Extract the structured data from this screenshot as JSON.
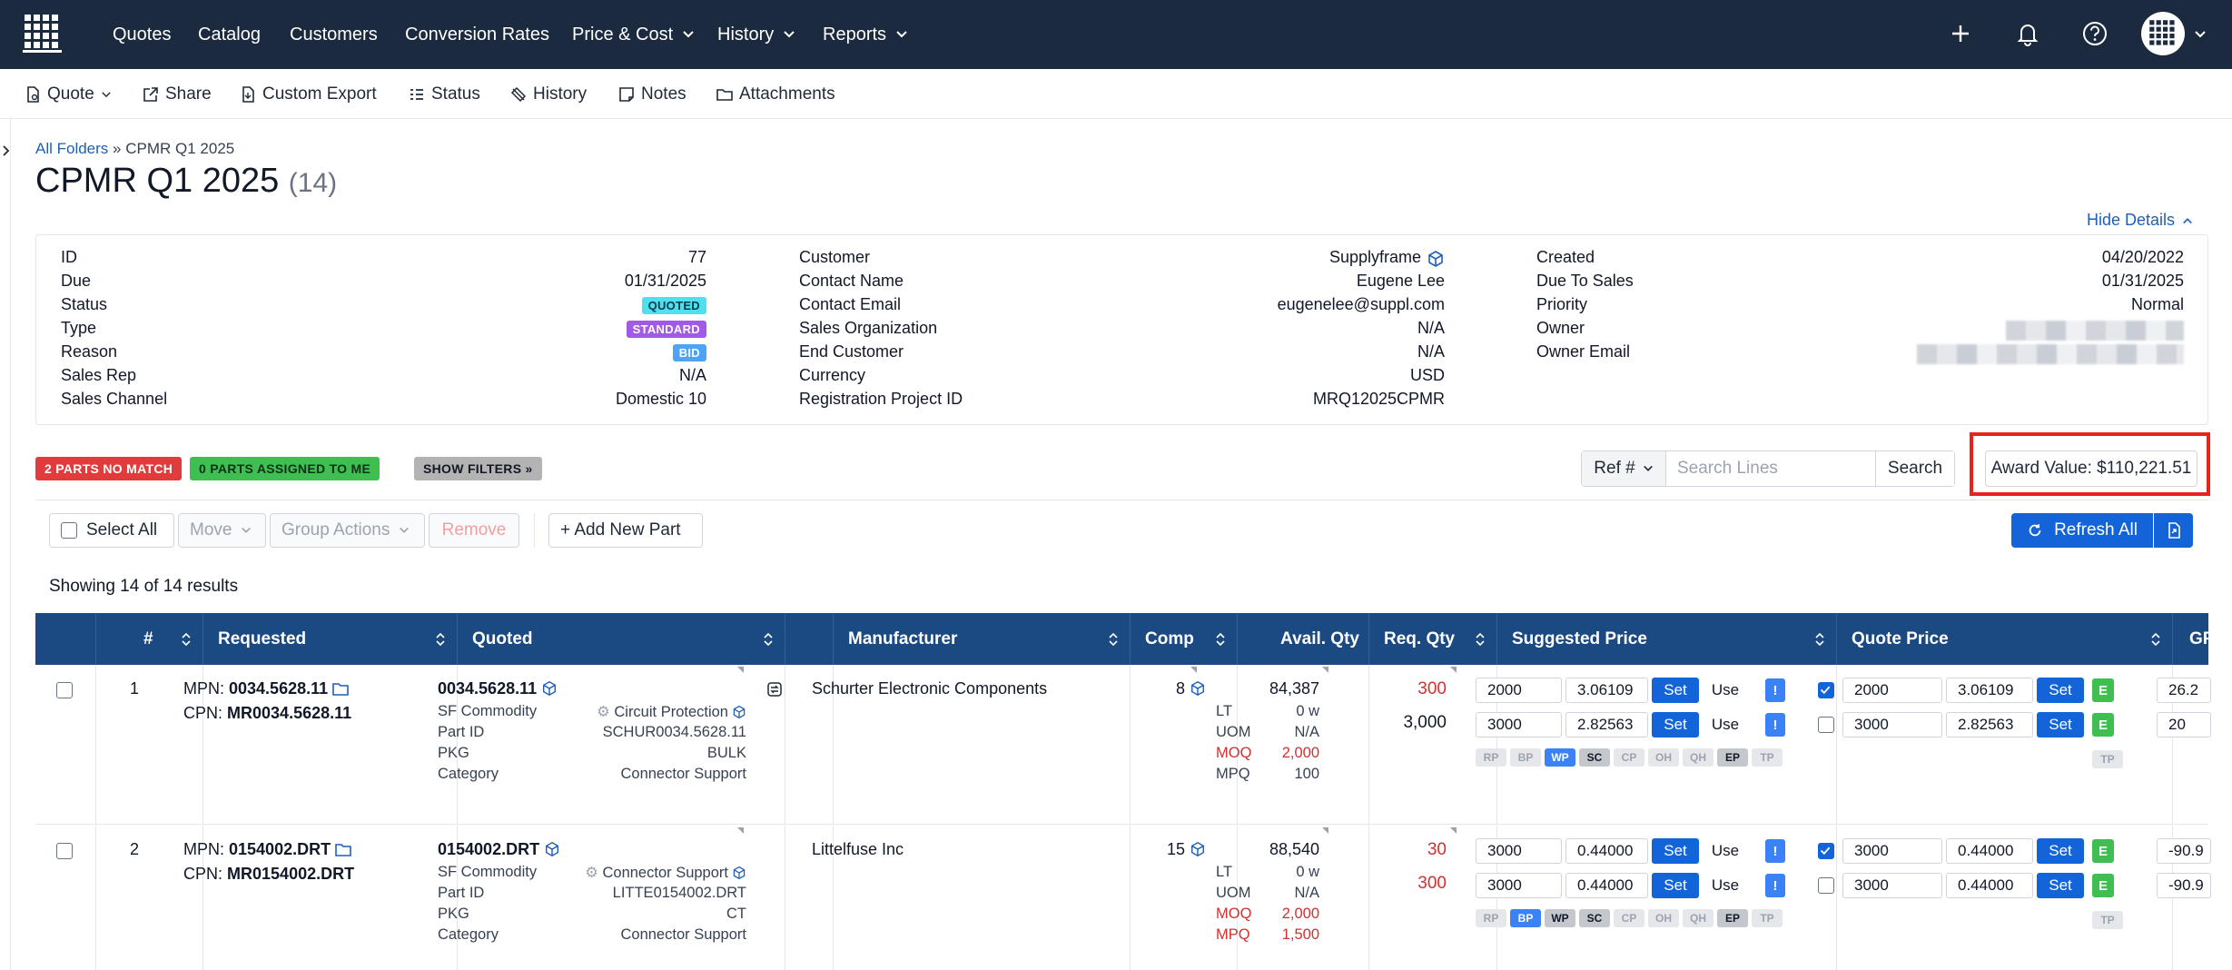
{
  "nav": {
    "items": [
      {
        "label": "Quotes",
        "dropdown": false
      },
      {
        "label": "Catalog",
        "dropdown": false
      },
      {
        "label": "Customers",
        "dropdown": false
      },
      {
        "label": "Conversion Rates",
        "dropdown": false
      },
      {
        "label": "Price & Cost",
        "dropdown": true
      },
      {
        "label": "History",
        "dropdown": true
      },
      {
        "label": "Reports",
        "dropdown": true
      }
    ],
    "icons": [
      "plus-icon",
      "bell-icon",
      "help-icon",
      "avatar"
    ]
  },
  "toolbar": {
    "quote": "Quote",
    "share": "Share",
    "custom_export": "Custom Export",
    "status": "Status",
    "history": "History",
    "notes": "Notes",
    "attachments": "Attachments"
  },
  "breadcrumb": {
    "root": "All Folders",
    "sep": "»",
    "current": "CPMR Q1 2025"
  },
  "page": {
    "title": "CPMR Q1 2025",
    "count": "(14)",
    "hide_details": "Hide Details"
  },
  "details": {
    "col1": [
      {
        "label": "ID",
        "value": "77"
      },
      {
        "label": "Due",
        "value": "01/31/2025"
      },
      {
        "label": "Status",
        "value": "QUOTED",
        "badge": "quoted"
      },
      {
        "label": "Type",
        "value": "STANDARD",
        "badge": "standard"
      },
      {
        "label": "Reason",
        "value": "BID",
        "badge": "bid"
      },
      {
        "label": "Sales Rep",
        "value": "N/A"
      },
      {
        "label": "Sales Channel",
        "value": "Domestic 10"
      }
    ],
    "col2": [
      {
        "label": "Customer",
        "value": "Supplyframe"
      },
      {
        "label": "Contact Name",
        "value": "Eugene Lee"
      },
      {
        "label": "Contact Email",
        "value": "eugenelee@suppl.com"
      },
      {
        "label": "Sales Organization",
        "value": "N/A"
      },
      {
        "label": "End Customer",
        "value": "N/A"
      },
      {
        "label": "Currency",
        "value": "USD"
      },
      {
        "label": "Registration Project ID",
        "value": "MRQ12025CPMR"
      }
    ],
    "col3": [
      {
        "label": "Created",
        "value": "04/20/2022"
      },
      {
        "label": "Due To Sales",
        "value": "01/31/2025"
      },
      {
        "label": "Priority",
        "value": "Normal"
      },
      {
        "label": "Owner",
        "value": ""
      },
      {
        "label": "Owner Email",
        "value": ""
      }
    ]
  },
  "filters": {
    "no_match": "2 PARTS NO MATCH",
    "assigned": "0 PARTS ASSIGNED TO ME",
    "show_filters": "SHOW FILTERS »"
  },
  "search": {
    "ref": "Ref #",
    "placeholder": "Search Lines",
    "button": "Search"
  },
  "award": "Award Value: $110,221.51",
  "actions": {
    "select_all": "Select All",
    "move": "Move",
    "group_actions": "Group Actions",
    "remove": "Remove",
    "add_new_part": "+ Add New Part",
    "refresh_all": "Refresh All"
  },
  "showing": "Showing 14 of 14 results",
  "table": {
    "headers": {
      "num": "#",
      "requested": "Requested",
      "quoted": "Quoted",
      "manufacturer": "Manufacturer",
      "comp": "Comp",
      "avail": "Avail. Qty",
      "req": "Req. Qty",
      "suggested": "Suggested Price",
      "quote_price": "Quote Price",
      "gp": "GP"
    },
    "chips": [
      "RP",
      "BP",
      "WP",
      "SC",
      "CP",
      "OH",
      "QH",
      "EP",
      "TP"
    ],
    "rows": [
      {
        "num": "1",
        "mpn_label": "MPN:",
        "mpn": "0034.5628.11",
        "cpn_label": "CPN:",
        "cpn": "MR0034.5628.11",
        "quoted_part": "0034.5628.11",
        "sf_commodity_label": "SF Commodity",
        "sf_commodity": "Circuit Protection",
        "part_id_label": "Part ID",
        "part_id": "SCHUR0034.5628.11",
        "pkg_label": "PKG",
        "pkg": "BULK",
        "category_label": "Category",
        "category": "Connector Support",
        "manufacturer": "Schurter Electronic Components",
        "comp": "8",
        "avail": "84,387",
        "lt_label": "LT",
        "lt": "0 w",
        "uom_label": "UOM",
        "uom": "N/A",
        "moq_label": "MOQ",
        "moq": "2,000",
        "mpq_label": "MPQ",
        "mpq": "100",
        "req_qty": [
          "300",
          "3,000"
        ],
        "suggested": [
          {
            "qty": "2000",
            "price": "3.06109",
            "set": "Set",
            "use": "Use",
            "alert": "!"
          },
          {
            "qty": "3000",
            "price": "2.82563",
            "set": "Set",
            "use": "Use",
            "alert": "!"
          }
        ],
        "quote": [
          {
            "checked": true,
            "qty": "2000",
            "price": "3.06109",
            "set": "Set",
            "e": "E"
          },
          {
            "checked": false,
            "qty": "3000",
            "price": "2.82563",
            "set": "Set",
            "e": "E"
          }
        ],
        "gp": [
          "26.2",
          "20"
        ],
        "tp": "TP"
      },
      {
        "num": "2",
        "mpn_label": "MPN:",
        "mpn": "0154002.DRT",
        "cpn_label": "CPN:",
        "cpn": "MR0154002.DRT",
        "quoted_part": "0154002.DRT",
        "sf_commodity_label": "SF Commodity",
        "sf_commodity": "Connector Support",
        "part_id_label": "Part ID",
        "part_id": "LITTE0154002.DRT",
        "pkg_label": "PKG",
        "pkg": "CT",
        "category_label": "Category",
        "category": "Connector Support",
        "manufacturer": "Littelfuse Inc",
        "comp": "15",
        "avail": "88,540",
        "lt_label": "LT",
        "lt": "0 w",
        "uom_label": "UOM",
        "uom": "N/A",
        "moq_label": "MOQ",
        "moq": "2,000",
        "mpq_label": "MPQ",
        "mpq": "1,500",
        "req_qty": [
          "30",
          "300"
        ],
        "suggested": [
          {
            "qty": "3000",
            "price": "0.44000",
            "set": "Set",
            "use": "Use",
            "alert": "!"
          },
          {
            "qty": "3000",
            "price": "0.44000",
            "set": "Set",
            "use": "Use",
            "alert": "!"
          }
        ],
        "quote": [
          {
            "checked": true,
            "qty": "3000",
            "price": "0.44000",
            "set": "Set",
            "e": "E"
          },
          {
            "checked": false,
            "qty": "3000",
            "price": "0.44000",
            "set": "Set",
            "e": "E"
          }
        ],
        "gp": [
          "-90.9",
          "-90.9"
        ],
        "tp": "TP"
      }
    ]
  },
  "colors": {
    "nav_bg": "#1b2a3f",
    "table_header": "#1b4a82",
    "primary": "#1464d9",
    "highlight": "#e8231b"
  }
}
